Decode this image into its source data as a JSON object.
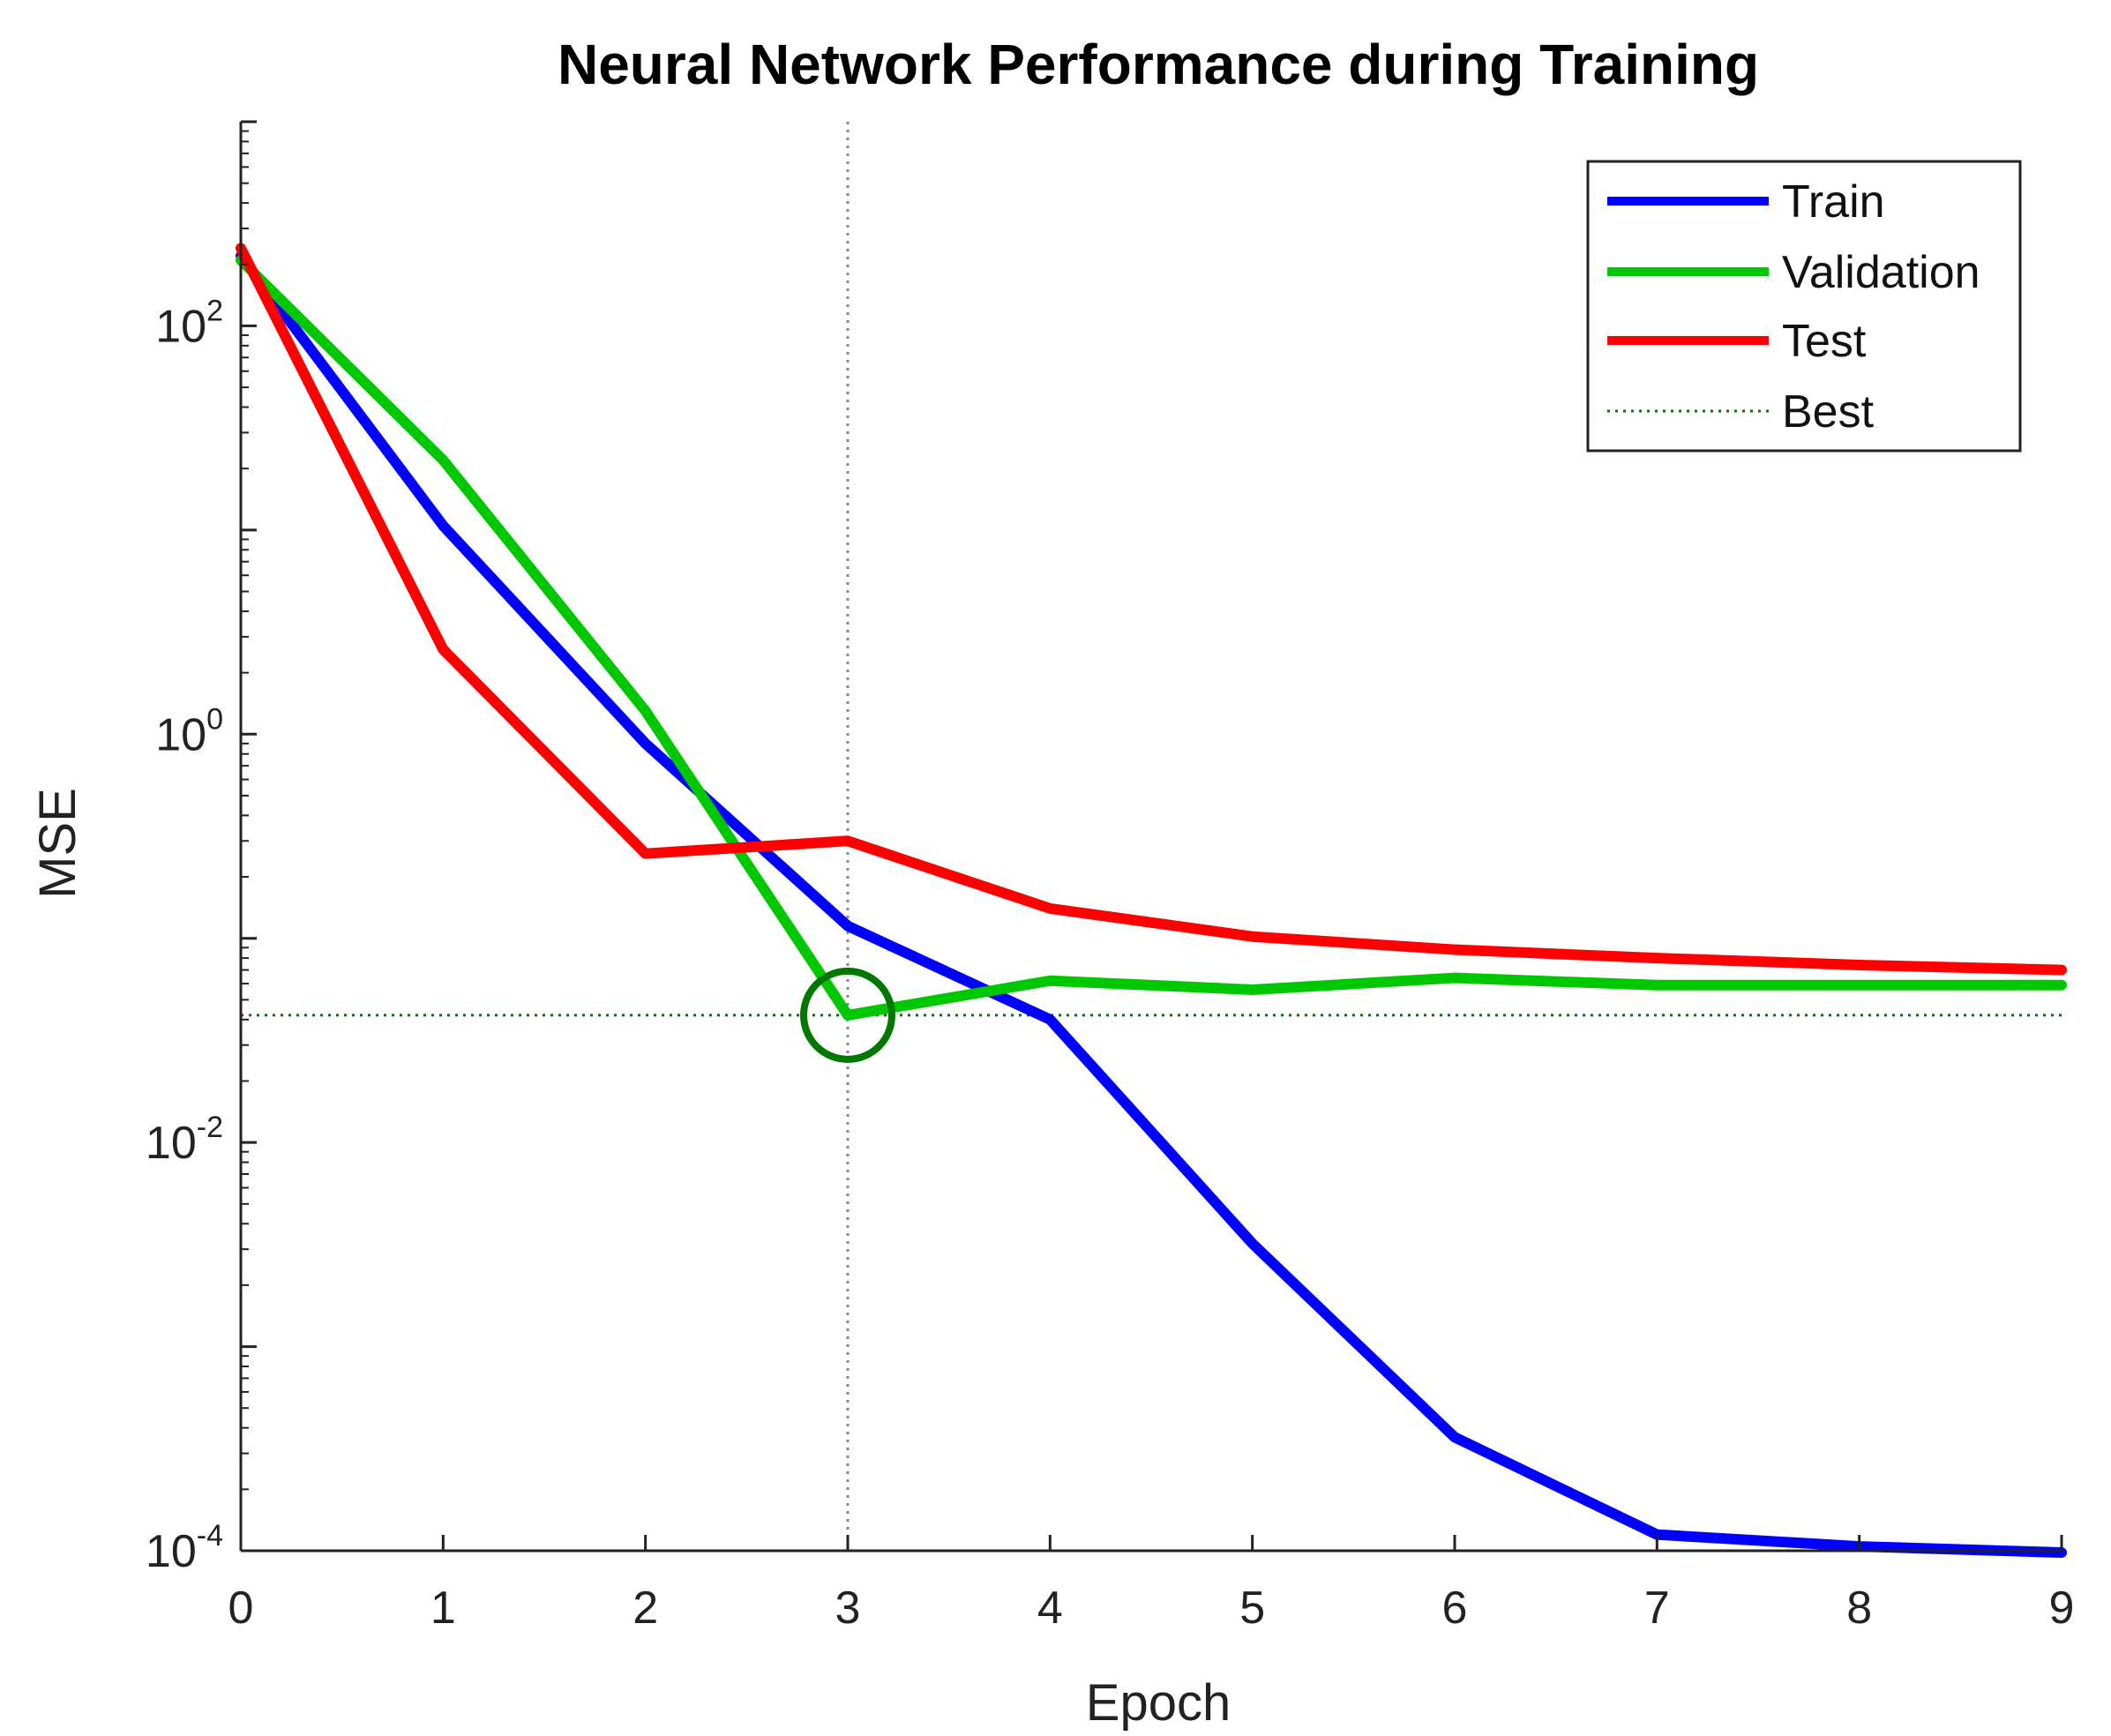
{
  "chart_data": {
    "type": "line",
    "title": "Neural Network Performance during Training",
    "xlabel": "Epoch",
    "ylabel": "MSE",
    "yscale": "log",
    "xlim": [
      0,
      9
    ],
    "ylim_exp": [
      -4,
      3
    ],
    "x": [
      0,
      1,
      2,
      3,
      4,
      5,
      6,
      7,
      8,
      9
    ],
    "x_tick_labels": [
      "0",
      "1",
      "2",
      "3",
      "4",
      "5",
      "6",
      "7",
      "8",
      "9"
    ],
    "y_ticks": [
      {
        "value": 0.0001,
        "base": "10",
        "exp": "-4"
      },
      {
        "value": 0.01,
        "base": "10",
        "exp": "-2"
      },
      {
        "value": 1,
        "base": "10",
        "exp": "0"
      },
      {
        "value": 100,
        "base": "10",
        "exp": "2"
      }
    ],
    "series": [
      {
        "name": "Train",
        "color": "#0000ff",
        "values": [
          220,
          10.5,
          0.9,
          0.115,
          0.04,
          0.0032,
          0.00036,
          0.00012,
          0.000105,
          9.8e-05
        ]
      },
      {
        "name": "Validation",
        "color": "#00c800",
        "values": [
          210,
          22,
          1.3,
          0.042,
          0.062,
          0.056,
          0.064,
          0.059,
          0.059,
          0.059
        ]
      },
      {
        "name": "Test",
        "color": "#ff0000",
        "values": [
          240,
          2.6,
          0.26,
          0.3,
          0.14,
          0.102,
          0.088,
          0.08,
          0.074,
          0.07
        ]
      }
    ],
    "best": {
      "label": "Best",
      "epoch": 3,
      "value": 0.042,
      "color": "#007800"
    },
    "legend": {
      "position": "top-right",
      "entries": [
        "Train",
        "Validation",
        "Test",
        "Best"
      ]
    }
  }
}
